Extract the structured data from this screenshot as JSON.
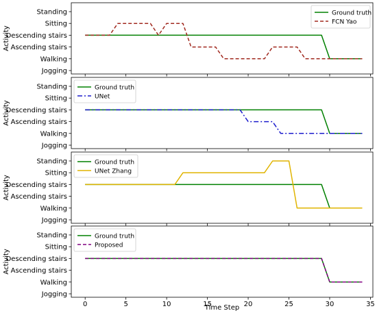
{
  "chart_data": {
    "type": "line",
    "xlabel": "Time Step",
    "ylabel": "Activity",
    "xlim": [
      -1.7,
      35.3
    ],
    "xticks": [
      0,
      5,
      10,
      15,
      20,
      25,
      30,
      35
    ],
    "categories": [
      "Jogging",
      "Walking",
      "Ascending stairs",
      "Descending stairs",
      "Sitting",
      "Standing"
    ],
    "colors": {
      "ground_truth": "#008000",
      "fcn_yao": "#a0281e",
      "unet": "#1a1acc",
      "unet_zhang": "#e0b400",
      "proposed": "#800080"
    },
    "panels": [
      {
        "legend_loc": "upper-right",
        "series": [
          {
            "name": "Ground truth",
            "style": "solid",
            "color": "#008000",
            "x": [
              0,
              29,
              30,
              34
            ],
            "y": [
              "Descending stairs",
              "Descending stairs",
              "Walking",
              "Walking"
            ]
          },
          {
            "name": "FCN Yao",
            "style": "dashed",
            "color": "#a0281e",
            "x": [
              0,
              3,
              4,
              8,
              9,
              10,
              12,
              13,
              16,
              17,
              22,
              23,
              26,
              27,
              34
            ],
            "y": [
              "Descending stairs",
              "Descending stairs",
              "Sitting",
              "Sitting",
              "Descending stairs",
              "Sitting",
              "Sitting",
              "Ascending stairs",
              "Ascending stairs",
              "Walking",
              "Walking",
              "Ascending stairs",
              "Ascending stairs",
              "Walking",
              "Walking"
            ]
          }
        ]
      },
      {
        "legend_loc": "upper-left",
        "series": [
          {
            "name": "Ground truth",
            "style": "solid",
            "color": "#008000",
            "x": [
              0,
              29,
              30,
              34
            ],
            "y": [
              "Descending stairs",
              "Descending stairs",
              "Walking",
              "Walking"
            ]
          },
          {
            "name": "UNet",
            "style": "dashdot",
            "color": "#1a1acc",
            "x": [
              0,
              19,
              20,
              23,
              24,
              34
            ],
            "y": [
              "Descending stairs",
              "Descending stairs",
              "Ascending stairs",
              "Ascending stairs",
              "Walking",
              "Walking"
            ]
          }
        ]
      },
      {
        "legend_loc": "upper-left",
        "series": [
          {
            "name": "Ground truth",
            "style": "solid",
            "color": "#008000",
            "x": [
              0,
              29,
              30,
              34
            ],
            "y": [
              "Descending stairs",
              "Descending stairs",
              "Walking",
              "Walking"
            ]
          },
          {
            "name": "UNet Zhang",
            "style": "solid",
            "color": "#e0b400",
            "x": [
              0,
              11,
              12,
              22,
              23,
              25,
              26,
              34
            ],
            "y": [
              "Descending stairs",
              "Descending stairs",
              "Sitting",
              "Sitting",
              "Standing",
              "Standing",
              "Walking",
              "Walking"
            ]
          }
        ]
      },
      {
        "legend_loc": "upper-left",
        "series": [
          {
            "name": "Ground truth",
            "style": "solid",
            "color": "#008000",
            "x": [
              0,
              29,
              30,
              34
            ],
            "y": [
              "Descending stairs",
              "Descending stairs",
              "Walking",
              "Walking"
            ]
          },
          {
            "name": "Proposed",
            "style": "dashed",
            "color": "#800080",
            "x": [
              0,
              29,
              30,
              34
            ],
            "y": [
              "Descending stairs",
              "Descending stairs",
              "Walking",
              "Walking"
            ]
          }
        ]
      }
    ]
  }
}
